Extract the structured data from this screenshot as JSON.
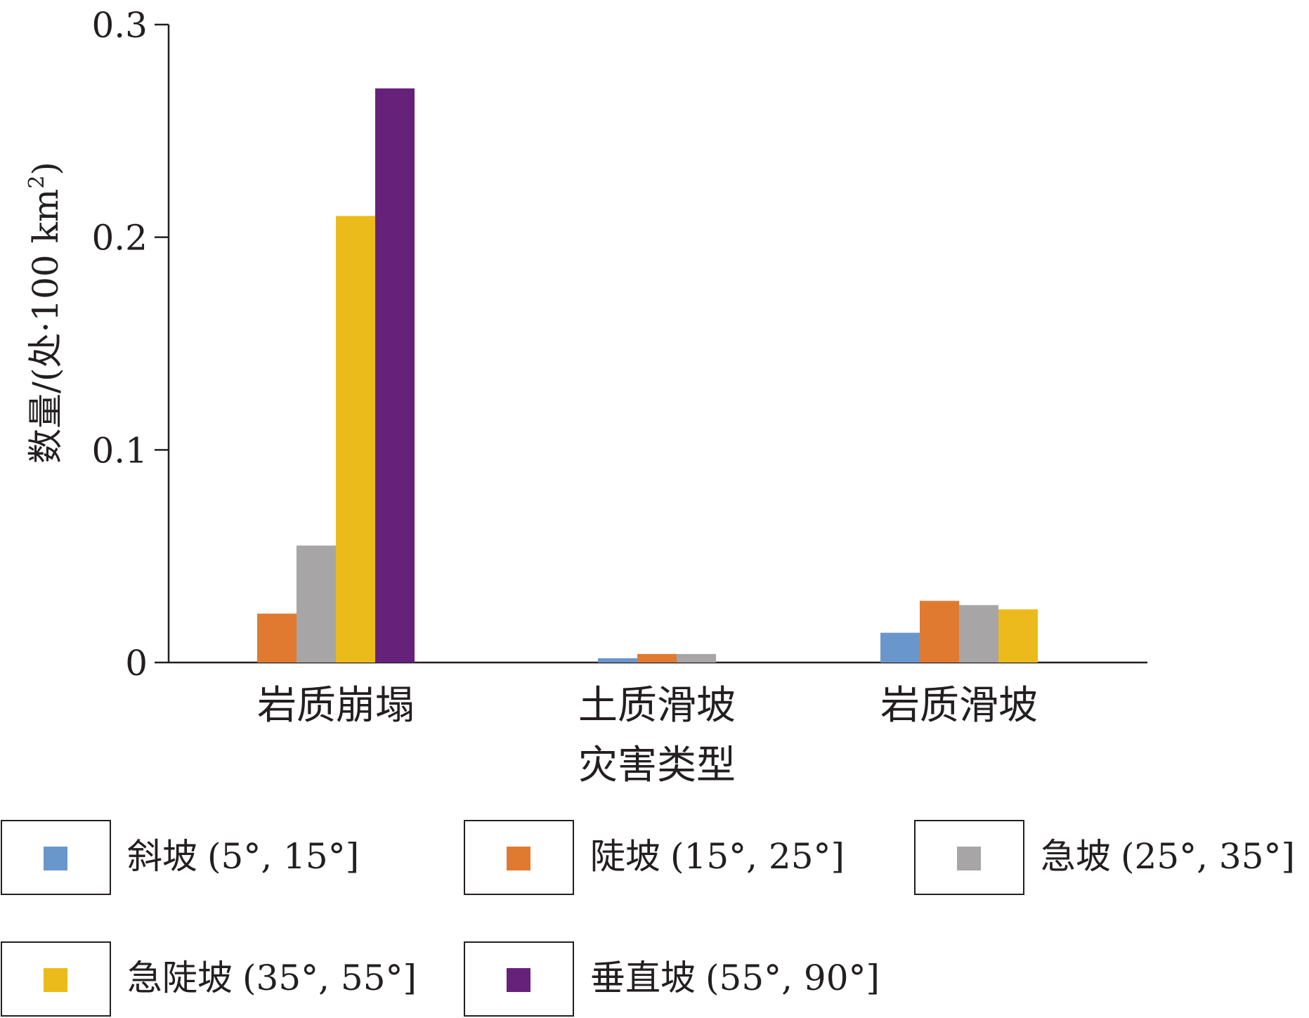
{
  "chart_data": {
    "type": "bar",
    "title": "",
    "xlabel": "灾害类型",
    "ylabel_main": "数量/(处·100 km",
    "ylabel_sup": "2",
    "ylabel_close": ")",
    "ylim": [
      0,
      0.3
    ],
    "yticks": [
      "0",
      "0.1",
      "0.2",
      "0.3"
    ],
    "categories": [
      "岩质崩塌",
      "土质滑坡",
      "岩质滑坡"
    ],
    "series": [
      {
        "name": "斜坡 (5°, 15°]",
        "color": "#6a97cb",
        "values": [
          0,
          0.002,
          0.014
        ]
      },
      {
        "name": "陡坡 (15°, 25°]",
        "color": "#e07a31",
        "values": [
          0.023,
          0.004,
          0.029
        ]
      },
      {
        "name": "急坡 (25°, 35°]",
        "color": "#a7a5a6",
        "values": [
          0.055,
          0.004,
          0.027
        ]
      },
      {
        "name": "急陡坡 (35°, 55°]",
        "color": "#ebbb1b",
        "values": [
          0.21,
          0,
          0.025
        ]
      },
      {
        "name": "垂直坡 (55°, 90°]",
        "color": "#66217a",
        "values": [
          0.27,
          0,
          0
        ]
      }
    ],
    "legend": {
      "placement": "bottom",
      "items": [
        {
          "slope": "斜坡",
          "range": "(5°, 15°]"
        },
        {
          "slope": "陡坡",
          "range": "(15°, 25°]"
        },
        {
          "slope": "急坡",
          "range": "(25°, 35°]"
        },
        {
          "slope": "急陡坡",
          "range": "(35°, 55°]"
        },
        {
          "slope": "垂直坡",
          "range": "(55°, 90°]"
        }
      ]
    },
    "grid": false
  }
}
